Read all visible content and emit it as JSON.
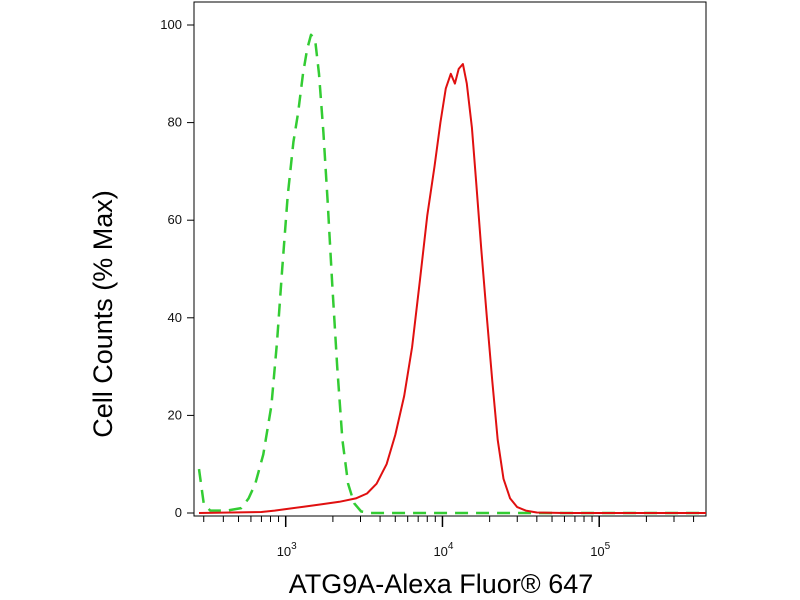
{
  "chart_data": {
    "type": "line",
    "title": "",
    "xlabel": "ATG9A-Alexa Fluor® 647",
    "ylabel": "Cell Counts (% Max)",
    "x_scale": "log",
    "xlim": [
      260,
      480000
    ],
    "ylim": [
      0,
      100
    ],
    "x_ticks": [
      {
        "value": 1000,
        "base": "10",
        "exp": "3"
      },
      {
        "value": 10000,
        "base": "10",
        "exp": "4"
      },
      {
        "value": 100000,
        "base": "10",
        "exp": "5"
      }
    ],
    "y_ticks": [
      0,
      20,
      40,
      60,
      80,
      100
    ],
    "grid": false,
    "legend": "none",
    "series": [
      {
        "style": "dashed",
        "color": "#33cc33",
        "points": [
          [
            280,
            9
          ],
          [
            300,
            2
          ],
          [
            330,
            0.5
          ],
          [
            370,
            0.5
          ],
          [
            420,
            0.5
          ],
          [
            520,
            1
          ],
          [
            580,
            3
          ],
          [
            640,
            6
          ],
          [
            720,
            12
          ],
          [
            810,
            22
          ],
          [
            880,
            35
          ],
          [
            950,
            50
          ],
          [
            1030,
            65
          ],
          [
            1120,
            76
          ],
          [
            1200,
            82
          ],
          [
            1290,
            90
          ],
          [
            1370,
            95
          ],
          [
            1450,
            98
          ],
          [
            1540,
            97
          ],
          [
            1630,
            90
          ],
          [
            1740,
            78
          ],
          [
            1850,
            64
          ],
          [
            1980,
            47
          ],
          [
            2130,
            30
          ],
          [
            2300,
            15
          ],
          [
            2500,
            6
          ],
          [
            2730,
            2
          ],
          [
            3030,
            0.3
          ],
          [
            3500,
            0
          ],
          [
            10000,
            0
          ],
          [
            30000,
            0
          ],
          [
            100000,
            0
          ],
          [
            480000,
            0
          ]
        ]
      },
      {
        "style": "solid",
        "color": "#e01010",
        "points": [
          [
            280,
            0
          ],
          [
            700,
            0.2
          ],
          [
            850,
            0.5
          ],
          [
            1000,
            0.8
          ],
          [
            1300,
            1.3
          ],
          [
            1700,
            1.8
          ],
          [
            2200,
            2.3
          ],
          [
            2800,
            3
          ],
          [
            3300,
            4
          ],
          [
            3800,
            6
          ],
          [
            4400,
            10
          ],
          [
            5000,
            16
          ],
          [
            5700,
            24
          ],
          [
            6400,
            34
          ],
          [
            7200,
            48
          ],
          [
            8000,
            61
          ],
          [
            8900,
            71
          ],
          [
            9700,
            80
          ],
          [
            10500,
            87
          ],
          [
            11300,
            90
          ],
          [
            12000,
            88
          ],
          [
            12700,
            91
          ],
          [
            13500,
            92
          ],
          [
            14300,
            88
          ],
          [
            15400,
            79
          ],
          [
            16400,
            68
          ],
          [
            17700,
            54
          ],
          [
            19200,
            40
          ],
          [
            20800,
            27
          ],
          [
            22500,
            15
          ],
          [
            24500,
            7
          ],
          [
            27000,
            3
          ],
          [
            30000,
            1.2
          ],
          [
            34000,
            0.5
          ],
          [
            40000,
            0.1
          ],
          [
            60000,
            0
          ],
          [
            480000,
            0
          ]
        ]
      }
    ]
  }
}
